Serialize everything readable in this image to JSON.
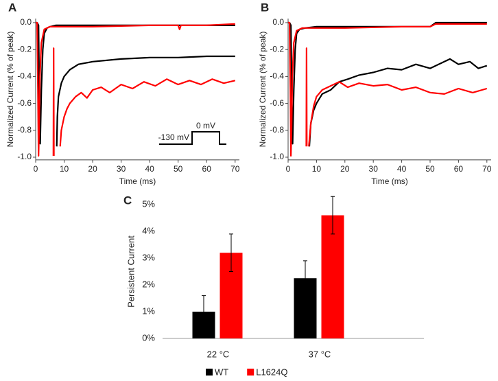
{
  "chart_data": [
    {
      "type": "line",
      "panel_label": "A",
      "xlabel": "Time (ms)",
      "ylabel": "Normalized Current (% of peak)",
      "xlim": [
        0,
        71.5
      ],
      "ylim": [
        -1.02,
        0.03
      ],
      "xticks": [
        0,
        10,
        20,
        30,
        40,
        50,
        60,
        70
      ],
      "yticks": [
        {
          "value": 0,
          "label": "0.0"
        },
        -0.2,
        -0.4,
        -0.6,
        -0.8,
        {
          "value": -1,
          "label": "-1.0"
        }
      ],
      "annotations": [
        "-130 mV",
        "0 mV"
      ],
      "series": [
        {
          "color": "#000000",
          "x": [
            0,
            0.5,
            1,
            1.3,
            1.6,
            2,
            2.5,
            3,
            4,
            5,
            7,
            10,
            20,
            40,
            70
          ],
          "values": [
            0,
            0,
            -0.02,
            -0.6,
            -0.9,
            -0.5,
            -0.2,
            -0.08,
            -0.04,
            -0.03,
            -0.02,
            -0.02,
            -0.02,
            -0.02,
            -0.02
          ]
        },
        {
          "color": "#ff0000",
          "x": [
            0,
            0.5,
            0.8,
            1,
            1.2,
            1.5,
            2,
            3,
            5,
            10,
            20,
            40,
            50,
            50.5,
            51,
            60,
            70
          ],
          "values": [
            0,
            0,
            -0.5,
            -0.99,
            -0.8,
            -0.4,
            -0.15,
            -0.05,
            -0.03,
            -0.03,
            -0.03,
            -0.02,
            -0.02,
            -0.05,
            -0.02,
            -0.02,
            -0.01
          ]
        },
        {
          "color": "#000000",
          "x": [
            7.4,
            7.6,
            8,
            9,
            10,
            12,
            15,
            20,
            30,
            40,
            50,
            60,
            70
          ],
          "values": [
            -0.92,
            -0.7,
            -0.55,
            -0.45,
            -0.4,
            -0.35,
            -0.31,
            -0.29,
            -0.27,
            -0.26,
            -0.26,
            -0.25,
            -0.25
          ]
        },
        {
          "color": "#ff0000",
          "x": [
            6.2,
            6.3,
            6.4,
            7,
            8.6,
            9,
            10,
            11,
            12,
            14,
            16,
            18,
            20,
            23,
            26,
            30,
            34,
            38,
            42,
            46,
            50,
            54,
            58,
            62,
            66,
            70
          ],
          "values": [
            -0.99,
            -0.19,
            -0.99,
            null,
            -0.92,
            -0.8,
            -0.7,
            -0.64,
            -0.6,
            -0.55,
            -0.52,
            -0.56,
            -0.5,
            -0.48,
            -0.52,
            -0.46,
            -0.49,
            -0.44,
            -0.47,
            -0.42,
            -0.46,
            -0.43,
            -0.46,
            -0.42,
            -0.45,
            -0.43
          ]
        }
      ]
    },
    {
      "type": "line",
      "panel_label": "B",
      "xlabel": "Time (ms)",
      "ylabel": "Normalized Current (% of peak)",
      "xlim": [
        0,
        71.5
      ],
      "ylim": [
        -1.02,
        0.03
      ],
      "xticks": [
        0,
        10,
        20,
        30,
        40,
        50,
        60,
        70
      ],
      "yticks": [
        {
          "value": 0,
          "label": "0.0"
        },
        -0.2,
        -0.4,
        -0.6,
        -0.8,
        {
          "value": -1,
          "label": "-1.0"
        }
      ],
      "series": [
        {
          "color": "#000000",
          "x": [
            0,
            0.5,
            1,
            1.3,
            1.6,
            2,
            2.5,
            3,
            4,
            6,
            10,
            20,
            40,
            50,
            52,
            60,
            70
          ],
          "values": [
            0,
            0,
            -0.02,
            -0.6,
            -0.9,
            -0.5,
            -0.2,
            -0.08,
            -0.05,
            -0.04,
            -0.03,
            -0.03,
            -0.03,
            -0.03,
            0,
            0,
            0
          ]
        },
        {
          "color": "#ff0000",
          "x": [
            0,
            0.5,
            0.8,
            1,
            1.2,
            1.5,
            2,
            3,
            5,
            10,
            20,
            40,
            50,
            52,
            60,
            70
          ],
          "values": [
            0,
            0,
            -0.5,
            -0.99,
            -0.8,
            -0.4,
            -0.15,
            -0.06,
            -0.04,
            -0.04,
            -0.04,
            -0.03,
            -0.03,
            -0.01,
            -0.01,
            -0.01
          ]
        },
        {
          "color": "#000000",
          "x": [
            7.5,
            8,
            9,
            10,
            12,
            15,
            18,
            21,
            25,
            30,
            35,
            40,
            45,
            50,
            54,
            57,
            60,
            64,
            67,
            70
          ],
          "values": [
            -0.92,
            -0.75,
            -0.65,
            -0.6,
            -0.53,
            -0.5,
            -0.44,
            -0.42,
            -0.39,
            -0.37,
            -0.34,
            -0.35,
            -0.31,
            -0.34,
            -0.3,
            -0.27,
            -0.31,
            -0.29,
            -0.34,
            -0.32
          ]
        },
        {
          "color": "#ff0000",
          "x": [
            6.4,
            6.5,
            6.6,
            7,
            7.3,
            8,
            9,
            10,
            12,
            15,
            18,
            21,
            25,
            30,
            35,
            40,
            45,
            50,
            55,
            60,
            65,
            70
          ],
          "values": [
            -0.92,
            -0.19,
            -0.92,
            null,
            -0.92,
            -0.75,
            -0.62,
            -0.55,
            -0.5,
            -0.47,
            -0.44,
            -0.48,
            -0.45,
            -0.47,
            -0.46,
            -0.5,
            -0.48,
            -0.52,
            -0.53,
            -0.49,
            -0.52,
            -0.49
          ]
        }
      ]
    },
    {
      "type": "bar",
      "panel_label": "C",
      "ylabel": "Persistent Current",
      "categories": [
        "22 °C",
        "37 °C"
      ],
      "ylim": [
        0,
        5
      ],
      "yticks": [
        {
          "value": 0,
          "label": "0%"
        },
        {
          "value": 1,
          "label": "1%"
        },
        {
          "value": 2,
          "label": "2%"
        },
        {
          "value": 3,
          "label": "3%"
        },
        {
          "value": 4,
          "label": "4%"
        },
        {
          "value": 5,
          "label": "5%"
        }
      ],
      "series": [
        {
          "name": "WT",
          "color": "#000000",
          "values": [
            1.0,
            2.25
          ],
          "errors": [
            0.6,
            0.65
          ]
        },
        {
          "name": "L1624Q",
          "color": "#ff0000",
          "values": [
            3.2,
            4.6
          ],
          "errors": [
            0.7,
            0.7
          ]
        }
      ]
    }
  ]
}
